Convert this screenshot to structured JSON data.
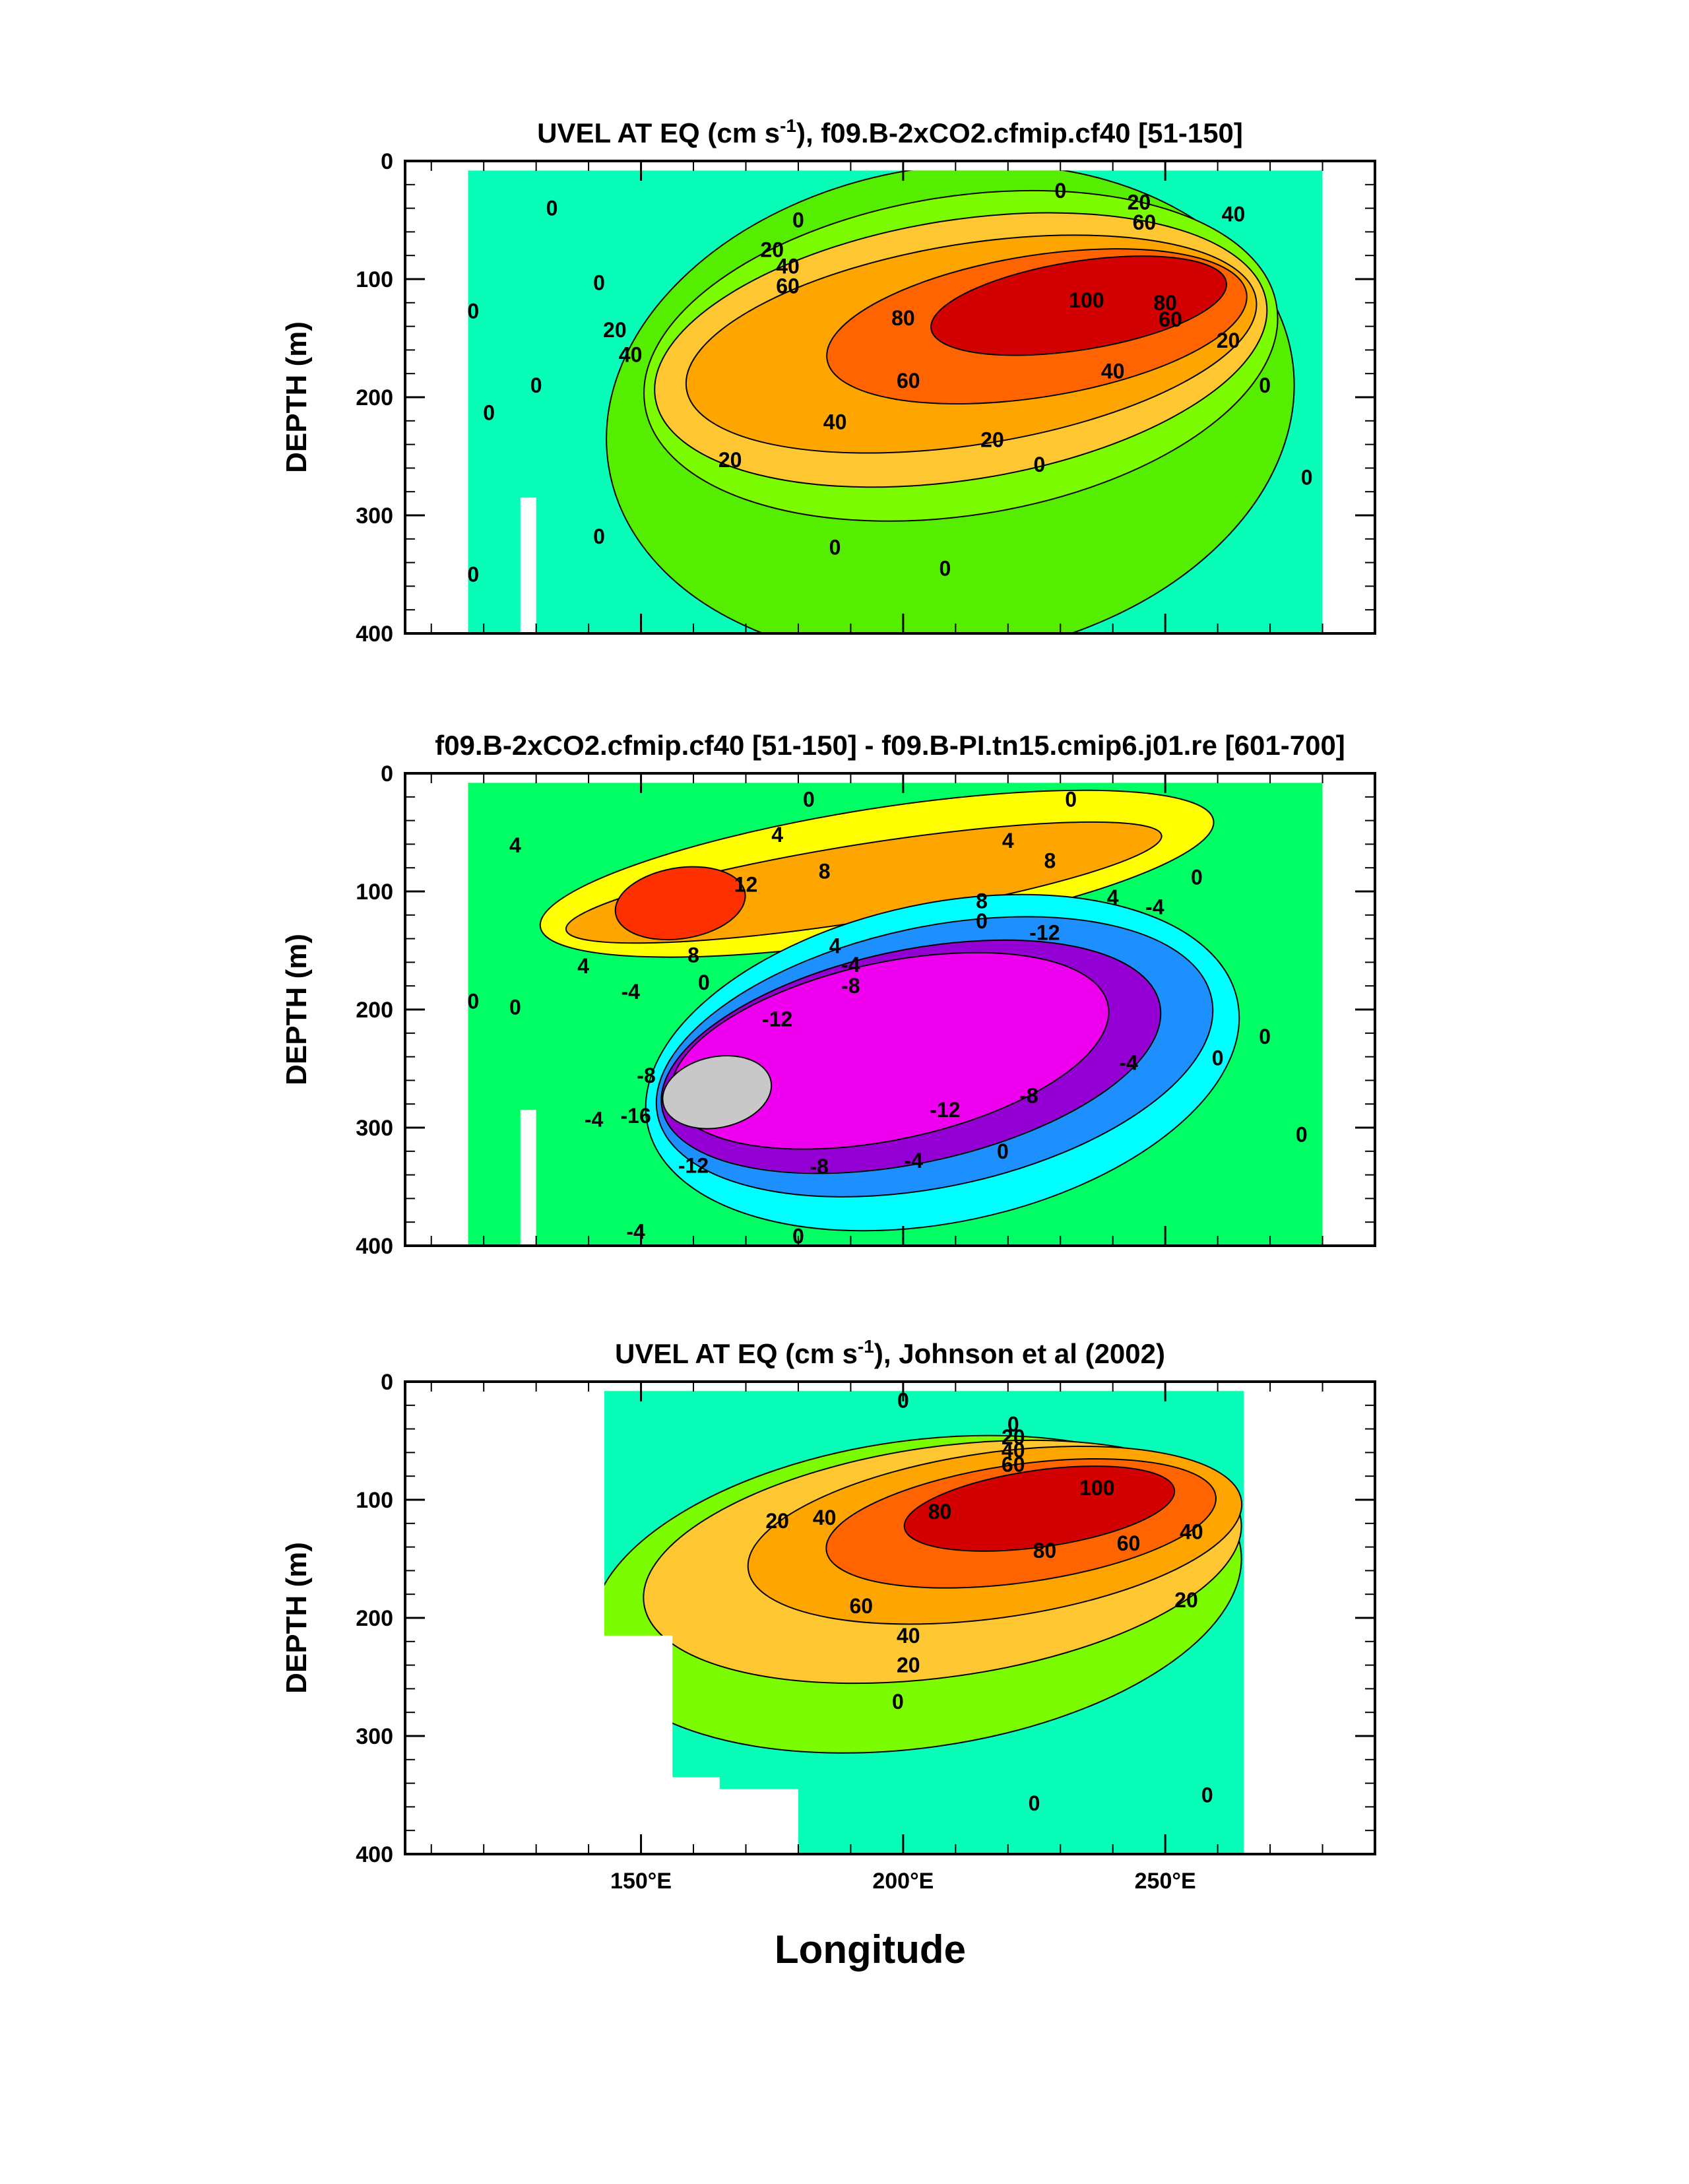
{
  "colors": {
    "-24": "#646464",
    "-20": "#c8c8c8",
    "-16": "#ee00ee",
    "-12": "#9400d3",
    "-10": "#0000ff",
    "-8": "#1e8fff",
    "-6": "#00bfff",
    "-4": "#00ffff",
    "-2": "#00ffdd",
    "0": "#00ff64",
    "2": "#7cfc00",
    "4": "#ffff00",
    "6": "#ffc832",
    "8": "#ffa500",
    "10": "#ff6400",
    "12": "#ff3000",
    "14": "#d20000",
    "ocean_bg": "#00ffcc",
    "green": "#55ee00"
  },
  "chart_data": [
    {
      "type": "heatmap",
      "title_main": "UVEL AT EQ (cm s",
      "title_sup": "-1",
      "title_rest": "), f09.B-2xCO2.cfmip.cf40 [51-150]",
      "ylabel": "DEPTH (m)",
      "xlabel": "",
      "xlim": [
        105,
        290
      ],
      "ylim": [
        400,
        0
      ],
      "yticks": [
        "0",
        "100",
        "200",
        "300",
        "400"
      ],
      "xticks": [],
      "field": {
        "background": 0,
        "land_x": 280,
        "blobs": [
          {
            "x0": 143,
            "x1": 275,
            "y0": 5,
            "y1": 420,
            "v": 0
          },
          {
            "x0": 150,
            "x1": 272,
            "y0": 30,
            "y1": 300,
            "v": 20
          },
          {
            "x0": 152,
            "x1": 270,
            "y0": 50,
            "y1": 270,
            "v": 40
          },
          {
            "x0": 158,
            "x1": 268,
            "y0": 70,
            "y1": 240,
            "v": 60
          },
          {
            "x0": 185,
            "x1": 266,
            "y0": 80,
            "y1": 200,
            "v": 80
          },
          {
            "x0": 205,
            "x1": 262,
            "y0": 85,
            "y1": 160,
            "v": 100
          }
        ],
        "max": 110
      },
      "contour_labels": [
        {
          "x": 230,
          "y": 25,
          "t": "0"
        },
        {
          "x": 180,
          "y": 50,
          "t": "0"
        },
        {
          "x": 245,
          "y": 35,
          "t": "20"
        },
        {
          "x": 263,
          "y": 45,
          "t": "40"
        },
        {
          "x": 246,
          "y": 52,
          "t": "60"
        },
        {
          "x": 175,
          "y": 75,
          "t": "20"
        },
        {
          "x": 178,
          "y": 89,
          "t": "40"
        },
        {
          "x": 178,
          "y": 106,
          "t": "60"
        },
        {
          "x": 200,
          "y": 133,
          "t": "80"
        },
        {
          "x": 235,
          "y": 118,
          "t": "100"
        },
        {
          "x": 250,
          "y": 120,
          "t": "80"
        },
        {
          "x": 251,
          "y": 134,
          "t": "60"
        },
        {
          "x": 145,
          "y": 143,
          "t": "20"
        },
        {
          "x": 148,
          "y": 164,
          "t": "40"
        },
        {
          "x": 201,
          "y": 186,
          "t": "60"
        },
        {
          "x": 240,
          "y": 178,
          "t": "40"
        },
        {
          "x": 262,
          "y": 152,
          "t": "20"
        },
        {
          "x": 187,
          "y": 221,
          "t": "40"
        },
        {
          "x": 217,
          "y": 236,
          "t": "20"
        },
        {
          "x": 167,
          "y": 253,
          "t": "20"
        },
        {
          "x": 226,
          "y": 257,
          "t": "0"
        },
        {
          "x": 187,
          "y": 327,
          "t": "0"
        },
        {
          "x": 208,
          "y": 345,
          "t": "0"
        },
        {
          "x": 118,
          "y": 127,
          "t": "0"
        },
        {
          "x": 121,
          "y": 213,
          "t": "0"
        },
        {
          "x": 118,
          "y": 350,
          "t": "0"
        },
        {
          "x": 133,
          "y": 40,
          "t": "0"
        },
        {
          "x": 142,
          "y": 103,
          "t": "0"
        },
        {
          "x": 130,
          "y": 190,
          "t": "0"
        },
        {
          "x": 142,
          "y": 318,
          "t": "0"
        },
        {
          "x": 269,
          "y": 190,
          "t": "0"
        },
        {
          "x": 277,
          "y": 268,
          "t": "0"
        }
      ]
    },
    {
      "type": "heatmap",
      "title_main": "f09.B-2xCO2.cfmip.cf40 [51-150] - f09.B-PI.tn15.cmip6.j01.re [601-700]",
      "title_sup": "",
      "title_rest": "",
      "ylabel": "DEPTH (m)",
      "xlabel": "",
      "xlim": [
        105,
        290
      ],
      "ylim": [
        400,
        0
      ],
      "yticks": [
        "0",
        "100",
        "200",
        "300",
        "400"
      ],
      "xticks": [],
      "field": {
        "background": 0,
        "land_x": 280,
        "blobs": [
          {
            "x0": 130,
            "x1": 260,
            "y0": 30,
            "y1": 140,
            "v": 4
          },
          {
            "x0": 135,
            "x1": 250,
            "y0": 60,
            "y1": 125,
            "v": 8
          },
          {
            "x0": 145,
            "x1": 170,
            "y0": 80,
            "y1": 140,
            "v": 12
          },
          {
            "x0": 150,
            "x1": 265,
            "y0": 110,
            "y1": 380,
            "v": -4
          },
          {
            "x0": 152,
            "x1": 260,
            "y0": 130,
            "y1": 350,
            "v": -8
          },
          {
            "x0": 153,
            "x1": 250,
            "y0": 150,
            "y1": 330,
            "v": -12
          },
          {
            "x0": 155,
            "x1": 240,
            "y0": 160,
            "y1": 310,
            "v": -16
          },
          {
            "x0": 154,
            "x1": 175,
            "y0": 240,
            "y1": 300,
            "v": -20
          }
        ]
      },
      "contour_labels": [
        {
          "x": 182,
          "y": 22,
          "t": "0"
        },
        {
          "x": 232,
          "y": 22,
          "t": "0"
        },
        {
          "x": 176,
          "y": 52,
          "t": "4"
        },
        {
          "x": 220,
          "y": 57,
          "t": "4"
        },
        {
          "x": 228,
          "y": 74,
          "t": "8"
        },
        {
          "x": 185,
          "y": 83,
          "t": "8"
        },
        {
          "x": 170,
          "y": 94,
          "t": "12"
        },
        {
          "x": 215,
          "y": 108,
          "t": "8"
        },
        {
          "x": 215,
          "y": 125,
          "t": "0"
        },
        {
          "x": 240,
          "y": 105,
          "t": "4"
        },
        {
          "x": 256,
          "y": 88,
          "t": "0"
        },
        {
          "x": 248,
          "y": 113,
          "t": "-4"
        },
        {
          "x": 227,
          "y": 135,
          "t": "-12"
        },
        {
          "x": 187,
          "y": 146,
          "t": "4"
        },
        {
          "x": 190,
          "y": 162,
          "t": "-4"
        },
        {
          "x": 190,
          "y": 180,
          "t": "-8"
        },
        {
          "x": 160,
          "y": 154,
          "t": "8"
        },
        {
          "x": 162,
          "y": 177,
          "t": "0"
        },
        {
          "x": 176,
          "y": 208,
          "t": "-12"
        },
        {
          "x": 224,
          "y": 273,
          "t": "-8"
        },
        {
          "x": 208,
          "y": 285,
          "t": "-12"
        },
        {
          "x": 184,
          "y": 333,
          "t": "-8"
        },
        {
          "x": 202,
          "y": 328,
          "t": "-4"
        },
        {
          "x": 243,
          "y": 245,
          "t": "-4"
        },
        {
          "x": 260,
          "y": 241,
          "t": "0"
        },
        {
          "x": 219,
          "y": 320,
          "t": "0"
        },
        {
          "x": 149,
          "y": 290,
          "t": "-16"
        },
        {
          "x": 151,
          "y": 256,
          "t": "-8"
        },
        {
          "x": 141,
          "y": 293,
          "t": "-4"
        },
        {
          "x": 160,
          "y": 332,
          "t": "-12"
        },
        {
          "x": 148,
          "y": 185,
          "t": "-4"
        },
        {
          "x": 139,
          "y": 163,
          "t": "4"
        },
        {
          "x": 126,
          "y": 61,
          "t": "4"
        },
        {
          "x": 118,
          "y": 193,
          "t": "0"
        },
        {
          "x": 126,
          "y": 198,
          "t": "0"
        },
        {
          "x": 149,
          "y": 388,
          "t": "-4"
        },
        {
          "x": 180,
          "y": 392,
          "t": "0"
        },
        {
          "x": 269,
          "y": 223,
          "t": "0"
        },
        {
          "x": 276,
          "y": 306,
          "t": "0"
        }
      ]
    },
    {
      "type": "heatmap",
      "title_main": "UVEL AT EQ (cm s",
      "title_sup": "-1",
      "title_rest": "), Johnson et al (2002)",
      "ylabel": "DEPTH (m)",
      "xlabel": "Longitude",
      "xlim": [
        105,
        290
      ],
      "ylim": [
        400,
        0
      ],
      "yticks": [
        "0",
        "100",
        "200",
        "300",
        "400"
      ],
      "xticks": [
        "150°E",
        "200°E",
        "250°E"
      ],
      "xtick_values": [
        150,
        200,
        250
      ],
      "field": {
        "background": 0,
        "blobs": [
          {
            "x0": 140,
            "x1": 265,
            "y0": 50,
            "y1": 310,
            "v": 20
          },
          {
            "x0": 150,
            "x1": 265,
            "y0": 55,
            "y1": 250,
            "v": 40
          },
          {
            "x0": 170,
            "x1": 265,
            "y0": 60,
            "y1": 200,
            "v": 60
          },
          {
            "x0": 185,
            "x1": 260,
            "y0": 70,
            "y1": 170,
            "v": 80
          },
          {
            "x0": 200,
            "x1": 252,
            "y0": 75,
            "y1": 140,
            "v": 100
          }
        ]
      },
      "contour_labels": [
        {
          "x": 200,
          "y": 16,
          "t": "0"
        },
        {
          "x": 221,
          "y": 36,
          "t": "0"
        },
        {
          "x": 221,
          "y": 47,
          "t": "20"
        },
        {
          "x": 221,
          "y": 58,
          "t": "40"
        },
        {
          "x": 221,
          "y": 70,
          "t": "60"
        },
        {
          "x": 176,
          "y": 118,
          "t": "20"
        },
        {
          "x": 185,
          "y": 115,
          "t": "40"
        },
        {
          "x": 207,
          "y": 110,
          "t": "80"
        },
        {
          "x": 237,
          "y": 90,
          "t": "100"
        },
        {
          "x": 227,
          "y": 143,
          "t": "80"
        },
        {
          "x": 243,
          "y": 137,
          "t": "60"
        },
        {
          "x": 255,
          "y": 127,
          "t": "40"
        },
        {
          "x": 254,
          "y": 185,
          "t": "20"
        },
        {
          "x": 192,
          "y": 190,
          "t": "60"
        },
        {
          "x": 201,
          "y": 215,
          "t": "40"
        },
        {
          "x": 201,
          "y": 240,
          "t": "20"
        },
        {
          "x": 199,
          "y": 271,
          "t": "0"
        },
        {
          "x": 225,
          "y": 357,
          "t": "0"
        },
        {
          "x": 258,
          "y": 350,
          "t": "0"
        }
      ]
    }
  ]
}
